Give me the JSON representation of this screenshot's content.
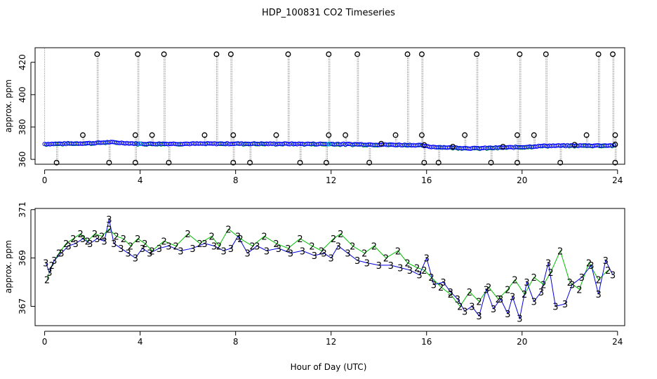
{
  "title": "HDP_100831  CO2 Timeseries",
  "xlabel": "Hour of Day (UTC)",
  "colors": {
    "raw": "#000000",
    "avg": "#0000ff",
    "series2": "#00c000",
    "series3": "#0000dd",
    "trace": "#808080",
    "cyan": "#00cccc"
  },
  "chart_data": [
    {
      "type": "scatter",
      "name": "top-panel",
      "ylabel": "approx. ppm",
      "xlim": [
        -0.4,
        24.3
      ],
      "ylim": [
        357,
        429
      ],
      "xticks": [
        "0",
        "4",
        "8",
        "12",
        "16",
        "20",
        "24"
      ],
      "yticks": [
        "360",
        "380",
        "400",
        "420"
      ],
      "baseline": [
        [
          0.0,
          369.5
        ],
        [
          2.0,
          370.0
        ],
        [
          2.7,
          370.6
        ],
        [
          4.0,
          369.6
        ],
        [
          8.0,
          369.7
        ],
        [
          12.0,
          369.5
        ],
        [
          15.7,
          368.8
        ],
        [
          16.1,
          367.8
        ],
        [
          18.0,
          366.8
        ],
        [
          20.0,
          367.6
        ],
        [
          21.0,
          368.4
        ],
        [
          23.9,
          368.6
        ]
      ],
      "outliers_high": [
        2.2,
        3.9,
        5.0,
        7.2,
        7.8,
        10.2,
        11.9,
        13.1,
        15.2,
        15.8,
        18.1,
        19.9,
        21.0,
        23.2,
        23.8
      ],
      "outliers_mid": [
        1.6,
        3.8,
        4.5,
        6.7,
        7.9,
        9.7,
        11.9,
        12.6,
        14.7,
        15.8,
        17.6,
        19.8,
        20.5,
        22.7,
        23.9
      ],
      "outliers_low": [
        0.5,
        2.7,
        3.8,
        5.2,
        7.9,
        8.6,
        10.7,
        11.8,
        13.6,
        15.9,
        16.5,
        18.7,
        19.8,
        21.6,
        23.9
      ],
      "outliers_base": [
        15.9,
        17.1,
        19.2,
        22.2,
        23.9,
        14.1
      ],
      "high_value": 425,
      "mid_value": 375,
      "low_value": 358
    },
    {
      "type": "scatter",
      "name": "bottom-panel",
      "ylabel": "approx. ppm",
      "xlim": [
        -0.4,
        24.3
      ],
      "ylim": [
        366.2,
        371.05
      ],
      "xticks": [
        "0",
        "4",
        "8",
        "12",
        "16",
        "20",
        "24"
      ],
      "yticks": [
        "367",
        "369",
        "371"
      ],
      "series": [
        {
          "name": "2",
          "label": "2",
          "color": "#00c000",
          "x": [
            0.1,
            0.3,
            0.6,
            0.9,
            1.2,
            1.5,
            1.8,
            2.1,
            2.4,
            2.7,
            3.0,
            3.3,
            3.6,
            3.9,
            4.2,
            4.5,
            5.0,
            5.5,
            6.0,
            6.5,
            7.0,
            7.3,
            7.7,
            8.2,
            8.7,
            9.2,
            9.7,
            10.2,
            10.7,
            11.2,
            11.6,
            12.1,
            12.4,
            12.9,
            13.4,
            13.8,
            14.3,
            14.8,
            15.2,
            15.6,
            15.9,
            16.2,
            16.6,
            17.0,
            17.4,
            17.8,
            18.2,
            18.6,
            19.0,
            19.4,
            19.7,
            20.1,
            20.5,
            20.9,
            21.2,
            21.6,
            22.0,
            22.4,
            22.8,
            23.2,
            23.6
          ],
          "y": [
            368.1,
            368.7,
            369.2,
            369.6,
            369.8,
            370.0,
            369.7,
            370.0,
            369.9,
            370.2,
            369.9,
            369.8,
            369.5,
            369.8,
            369.6,
            369.3,
            369.7,
            369.5,
            370.0,
            369.6,
            369.9,
            369.5,
            370.2,
            369.8,
            369.5,
            369.9,
            369.6,
            369.4,
            369.8,
            369.5,
            369.3,
            369.8,
            370.0,
            369.5,
            369.2,
            369.5,
            369.0,
            369.3,
            368.8,
            368.6,
            368.5,
            368.2,
            367.8,
            367.5,
            367.0,
            367.6,
            367.2,
            367.8,
            367.3,
            367.7,
            368.1,
            367.5,
            368.2,
            367.9,
            368.4,
            369.3,
            368.0,
            367.7,
            368.8,
            368.1,
            368.5
          ]
        },
        {
          "name": "3",
          "label": "3",
          "color": "#0000dd",
          "x": [
            0.05,
            0.2,
            0.4,
            0.7,
            1.0,
            1.3,
            1.6,
            1.9,
            2.2,
            2.5,
            2.7,
            2.9,
            3.2,
            3.5,
            3.8,
            4.1,
            4.4,
            4.8,
            5.2,
            5.7,
            6.2,
            6.7,
            7.1,
            7.5,
            7.8,
            8.1,
            8.5,
            8.9,
            9.3,
            9.8,
            10.3,
            10.8,
            11.3,
            11.7,
            12.0,
            12.3,
            12.7,
            13.1,
            13.5,
            14.0,
            14.5,
            14.9,
            15.3,
            15.7,
            16.0,
            16.3,
            16.7,
            17.0,
            17.3,
            17.6,
            17.9,
            18.2,
            18.5,
            18.8,
            19.1,
            19.4,
            19.6,
            19.9,
            20.2,
            20.5,
            20.8,
            21.1,
            21.4,
            21.8,
            22.1,
            22.5,
            22.9,
            23.2,
            23.5,
            23.8
          ],
          "y": [
            368.8,
            368.4,
            368.9,
            369.2,
            369.5,
            369.6,
            369.8,
            369.6,
            369.8,
            369.7,
            370.6,
            369.6,
            369.4,
            369.2,
            369.0,
            369.4,
            369.2,
            369.4,
            369.5,
            369.3,
            369.4,
            369.6,
            369.5,
            369.3,
            369.4,
            369.9,
            369.2,
            369.5,
            369.3,
            369.4,
            369.2,
            369.3,
            369.1,
            369.2,
            369.0,
            369.5,
            369.2,
            368.9,
            368.8,
            368.7,
            368.7,
            368.6,
            368.5,
            368.3,
            369.0,
            367.9,
            368.0,
            367.6,
            367.3,
            366.8,
            367.0,
            366.6,
            367.7,
            366.9,
            367.3,
            366.7,
            367.4,
            366.5,
            368.0,
            367.2,
            367.6,
            368.8,
            367.0,
            367.1,
            367.9,
            368.2,
            368.7,
            367.5,
            368.9,
            368.3
          ]
        }
      ]
    }
  ]
}
